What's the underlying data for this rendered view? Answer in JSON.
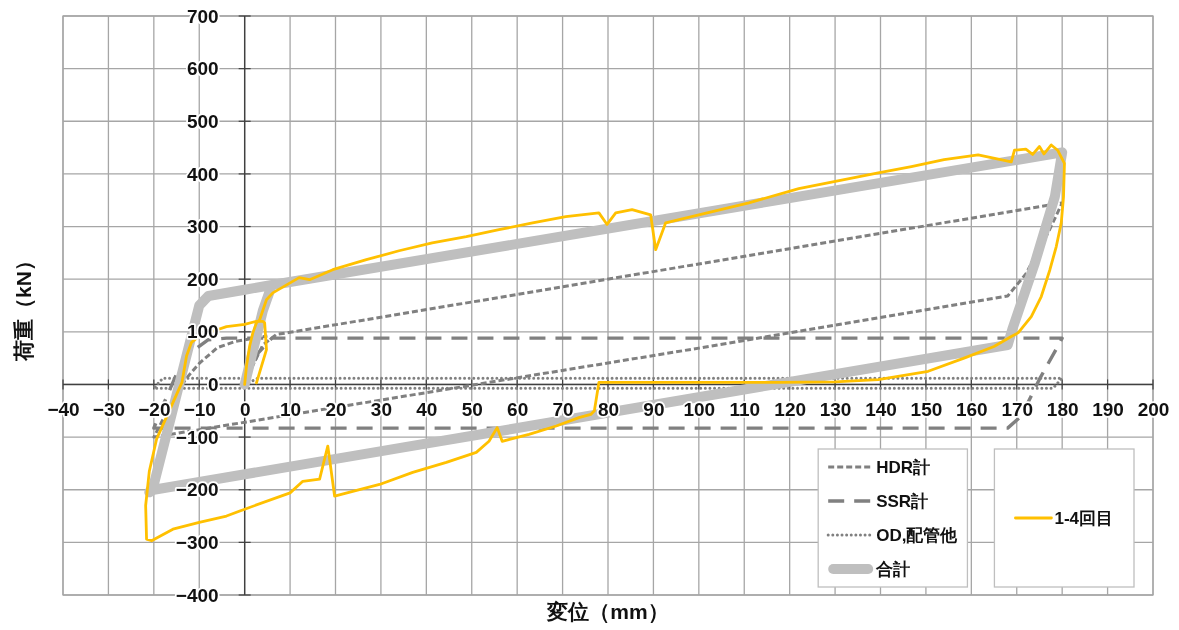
{
  "chart_data": {
    "type": "line",
    "xlabel": "変位（mm）",
    "ylabel": "荷重（kN）",
    "xlim": [
      -40,
      200
    ],
    "xticks": [
      -40,
      -30,
      -20,
      -10,
      0,
      10,
      20,
      30,
      40,
      50,
      60,
      70,
      80,
      90,
      100,
      110,
      120,
      130,
      140,
      150,
      160,
      170,
      180,
      190,
      200
    ],
    "ylim": [
      -400,
      700
    ],
    "yticks": [
      -400,
      -300,
      -200,
      -100,
      0,
      100,
      200,
      300,
      400,
      500,
      600,
      700
    ],
    "grid": true,
    "legend": "bottom right",
    "series": [
      {
        "name": "HDR計",
        "color": "#808080",
        "line_style": "dashed",
        "x": [
          0,
          2,
          4,
          7,
          10,
          60,
          120,
          180,
          177,
          172,
          168,
          100,
          34,
          -20,
          -17,
          -13,
          -10,
          -6,
          -2,
          5
        ],
        "values": [
          0,
          40,
          75,
          95,
          99,
          171,
          258,
          345,
          290,
          210,
          168,
          69,
          -24,
          -100,
          -50,
          10,
          40,
          70,
          82,
          92
        ]
      },
      {
        "name": "SSR計",
        "color": "#808080",
        "line_style": "dashed",
        "x": [
          0,
          3,
          6,
          180,
          179,
          175,
          171,
          168,
          -20,
          -18,
          -15,
          -12,
          -8,
          -4,
          6
        ],
        "values": [
          0,
          60,
          88,
          88,
          72,
          10,
          -60,
          -83,
          -83,
          -40,
          20,
          60,
          85,
          88,
          88
        ]
      },
      {
        "name": "OD,配管他",
        "color": "#808080",
        "line_style": "dotted",
        "x": [
          0,
          3,
          180,
          178,
          -20,
          -18,
          0
        ],
        "values": [
          0,
          12,
          12,
          -7,
          -7,
          12,
          12
        ]
      },
      {
        "name": "合計",
        "color": "#bfbfbf",
        "line_style": "solid",
        "x": [
          0,
          2,
          4,
          6,
          60,
          120,
          180,
          178.4,
          174,
          169,
          168,
          120,
          34,
          -20,
          -21,
          -20,
          -15,
          -10,
          -8,
          0,
          6
        ],
        "values": [
          0,
          70,
          140,
          189,
          267,
          354,
          441,
          357,
          231,
          104,
          75,
          5,
          -121,
          -200,
          -205,
          -190,
          -20,
          150,
          168,
          180,
          189
        ]
      },
      {
        "name": "1-4回目",
        "color": "#ffc000",
        "line_style": "solid",
        "x": [
          0,
          0.4,
          1.1,
          1.8,
          2.6,
          3.3,
          4.8,
          6.2,
          10,
          12,
          14.3,
          19.4,
          26.8,
          34,
          41.3,
          48.8,
          56,
          63.4,
          70.7,
          78,
          79.8,
          81.7,
          85.3,
          89.4,
          90.5,
          92.7,
          100,
          111,
          122,
          132,
          139.5,
          146.8,
          154,
          161.5,
          168.8,
          169.5,
          172,
          173.5,
          175,
          176,
          177.6,
          179,
          180.5,
          180.3,
          179.8,
          178.7,
          177.3,
          175.4,
          173.2,
          170.3,
          168.8,
          165,
          158.7,
          150.5,
          139.5,
          130,
          118,
          100,
          78,
          77,
          76.2,
          73.6,
          68.6,
          62.6,
          56.7,
          55.6,
          53.8,
          51,
          44.4,
          37,
          29.7,
          19.8,
          18.3,
          16.5,
          12.8,
          10,
          0,
          -4,
          -10,
          -15.8,
          -20.5,
          -21.6,
          -21.8,
          -21,
          -19.4,
          -13.8,
          -12.8,
          -11.7,
          -10,
          -7,
          -4,
          0,
          2.6,
          4,
          4.4,
          4.8,
          2.6
        ],
        "values": [
          0,
          35,
          73,
          98,
          117,
          123,
          161,
          174,
          193,
          203,
          199,
          218,
          237,
          254,
          269,
          281,
          294,
          307,
          319,
          326,
          304,
          326,
          332,
          322,
          256,
          307,
          322,
          345,
          372,
          389,
          402,
          414,
          427,
          436,
          423,
          445,
          447,
          437,
          452,
          438,
          455,
          445,
          420,
          357,
          307,
          262,
          218,
          167,
          129,
          98,
          91,
          72,
          51,
          25,
          9,
          5,
          4,
          4,
          4,
          -50,
          -57,
          -63,
          -79,
          -95,
          -108,
          -82,
          -108,
          -129,
          -148,
          -167,
          -190,
          -212,
          -117,
          -180,
          -184,
          -206,
          -237,
          -250,
          -262,
          -275,
          -297,
          -294,
          -230,
          -165,
          -104,
          4,
          54,
          80,
          92,
          101,
          110,
          114,
          120,
          120,
          117,
          66,
          3
        ]
      }
    ]
  }
}
